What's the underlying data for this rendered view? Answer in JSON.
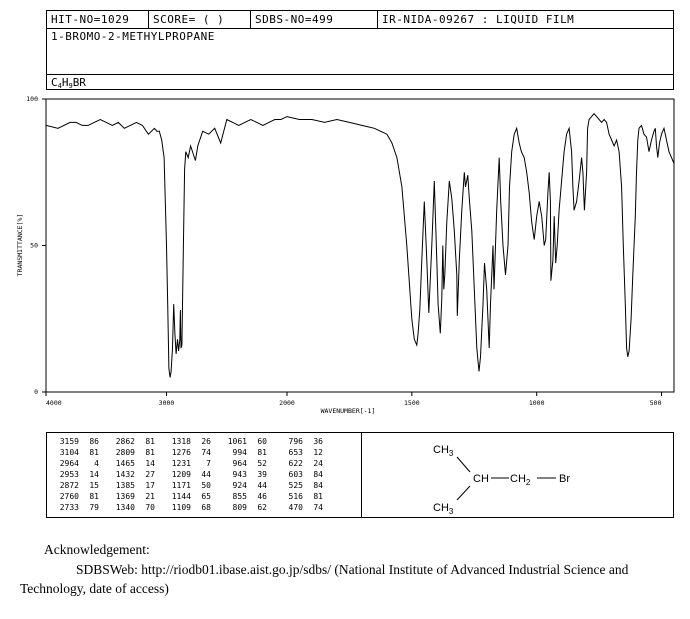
{
  "header": {
    "hit_no": "HIT-NO=1029",
    "score": "SCORE=  (  )",
    "sdbs_no": "SDBS-NO=499",
    "ir_code": "IR-NIDA-09267 : LIQUID FILM",
    "compound_name": "1-BROMO-2-METHYLPROPANE",
    "formula_c": "C",
    "formula_c_sub": "4",
    "formula_h": "H",
    "formula_h_sub": "9",
    "formula_br": "BR"
  },
  "chart_data": {
    "type": "line",
    "title": "",
    "xlabel": "WAVENUMBER[-1]",
    "ylabel": "TRANSMITTANCE[%]",
    "x_range": [
      4000,
      450
    ],
    "ylim": [
      0,
      100
    ],
    "x_ticks": [
      4000,
      3000,
      2000,
      1500,
      1000,
      500
    ],
    "x_tick_labels": [
      "4000",
      "3000",
      "2000",
      "1500",
      "1000",
      "500"
    ],
    "y_ticks": [
      0,
      50,
      100
    ],
    "y_tick_labels": [
      "0",
      "50",
      "100"
    ],
    "series": [
      {
        "name": "1-bromo-2-methylpropane IR spectrum",
        "x": [
          4000,
          3900,
          3800,
          3750,
          3700,
          3650,
          3600,
          3550,
          3500,
          3450,
          3400,
          3350,
          3300,
          3250,
          3200,
          3150,
          3100,
          3080,
          3060,
          3040,
          3020,
          3000,
          2990,
          2980,
          2970,
          2962,
          2950,
          2940,
          2930,
          2920,
          2909,
          2900,
          2895,
          2890,
          2885,
          2880,
          2872,
          2860,
          2850,
          2840,
          2820,
          2800,
          2760,
          2740,
          2700,
          2650,
          2600,
          2550,
          2500,
          2450,
          2400,
          2350,
          2300,
          2250,
          2200,
          2150,
          2100,
          2050,
          2000,
          1950,
          1900,
          1850,
          1800,
          1750,
          1700,
          1650,
          1600,
          1580,
          1560,
          1540,
          1520,
          1500,
          1490,
          1480,
          1475,
          1468,
          1460,
          1450,
          1440,
          1432,
          1420,
          1410,
          1400,
          1395,
          1386,
          1380,
          1376,
          1372,
          1368,
          1360,
          1350,
          1340,
          1330,
          1320,
          1318,
          1310,
          1300,
          1290,
          1285,
          1276,
          1270,
          1260,
          1250,
          1240,
          1231,
          1225,
          1215,
          1209,
          1200,
          1190,
          1185,
          1175,
          1171,
          1160,
          1150,
          1144,
          1135,
          1125,
          1115,
          1109,
          1100,
          1090,
          1080,
          1070,
          1061,
          1050,
          1040,
          1030,
          1020,
          1010,
          1000,
          990,
          980,
          970,
          964,
          955,
          950,
          945,
          943,
          935,
          930,
          924,
          918,
          910,
          900,
          890,
          880,
          870,
          860,
          855,
          850,
          840,
          830,
          820,
          815,
          809,
          800,
          796,
          790,
          780,
          770,
          760,
          750,
          740,
          730,
          720,
          710,
          700,
          690,
          680,
          670,
          660,
          653,
          645,
          640,
          635,
          630,
          622,
          615,
          605,
          600,
          595,
          590,
          580,
          570,
          560,
          550,
          540,
          530,
          525,
          520,
          515,
          508,
          500,
          490,
          480,
          470,
          460,
          450
        ],
        "values": [
          91,
          90,
          92,
          92,
          91,
          91,
          92,
          93,
          92,
          91,
          92,
          90,
          91,
          92,
          91,
          88,
          90,
          89,
          89,
          86,
          80,
          50,
          30,
          8,
          5,
          7,
          15,
          30,
          20,
          13,
          18,
          14,
          16,
          18,
          28,
          15,
          16,
          50,
          76,
          82,
          80,
          84,
          79,
          84,
          89,
          88,
          90,
          85,
          93,
          92,
          91,
          92,
          93,
          92,
          91,
          92,
          93,
          93,
          94,
          93,
          93,
          92,
          93,
          92,
          91,
          90,
          88,
          85,
          80,
          70,
          50,
          25,
          18,
          16,
          20,
          28,
          45,
          65,
          45,
          27,
          50,
          72,
          45,
          30,
          20,
          32,
          50,
          35,
          40,
          58,
          72,
          66,
          55,
          40,
          26,
          45,
          62,
          75,
          70,
          74,
          66,
          55,
          35,
          15,
          7,
          12,
          30,
          44,
          35,
          15,
          30,
          50,
          35,
          62,
          80,
          65,
          50,
          40,
          50,
          70,
          82,
          88,
          90,
          85,
          82,
          80,
          75,
          68,
          58,
          52,
          60,
          65,
          60,
          50,
          52,
          68,
          75,
          65,
          38,
          45,
          60,
          44,
          50,
          62,
          72,
          82,
          88,
          90,
          82,
          70,
          62,
          65,
          72,
          80,
          75,
          62,
          75,
          90,
          93,
          94,
          95,
          94,
          93,
          92,
          93,
          92,
          88,
          86,
          84,
          86,
          82,
          70,
          50,
          30,
          15,
          12,
          14,
          25,
          40,
          60,
          75,
          86,
          90,
          91,
          88,
          87,
          82,
          86,
          89,
          90,
          84,
          80,
          85,
          88,
          90,
          86,
          82,
          80,
          78
        ]
      }
    ]
  },
  "peaks_table": {
    "rows": [
      [
        "3159",
        "86",
        "2862",
        "81",
        "1318",
        "26",
        "1061",
        "60",
        "796",
        "36"
      ],
      [
        "3104",
        "81",
        "2809",
        "81",
        "1276",
        "74",
        "994",
        "81",
        "653",
        "12"
      ],
      [
        "2964",
        "4",
        "1465",
        "14",
        "1231",
        "7",
        "964",
        "52",
        "622",
        "24"
      ],
      [
        "2953",
        "14",
        "1432",
        "27",
        "1209",
        "44",
        "943",
        "39",
        "603",
        "84"
      ],
      [
        "2872",
        "15",
        "1385",
        "17",
        "1171",
        "50",
        "924",
        "44",
        "525",
        "84"
      ],
      [
        "2760",
        "81",
        "1369",
        "21",
        "1144",
        "65",
        "855",
        "46",
        "516",
        "81"
      ],
      [
        "2733",
        "79",
        "1340",
        "70",
        "1109",
        "68",
        "809",
        "62",
        "470",
        "74"
      ]
    ]
  },
  "structure": {
    "top_methyl": "CH",
    "top_methyl_sub": "3",
    "center": "CH",
    "methylene": "CH",
    "methylene_sub": "2",
    "bromine": "Br",
    "bottom_methyl": "CH",
    "bottom_methyl_sub": "3"
  },
  "acknowledgement": {
    "title": "Acknowledgement:",
    "line1": "SDBSWeb: http://riodb01.ibase.aist.go.jp/sdbs/ (National Institute of Advanced Industrial Science and",
    "line2": "Technology, date of access)"
  },
  "colors": {
    "ink": "#000000",
    "background": "#ffffff"
  }
}
